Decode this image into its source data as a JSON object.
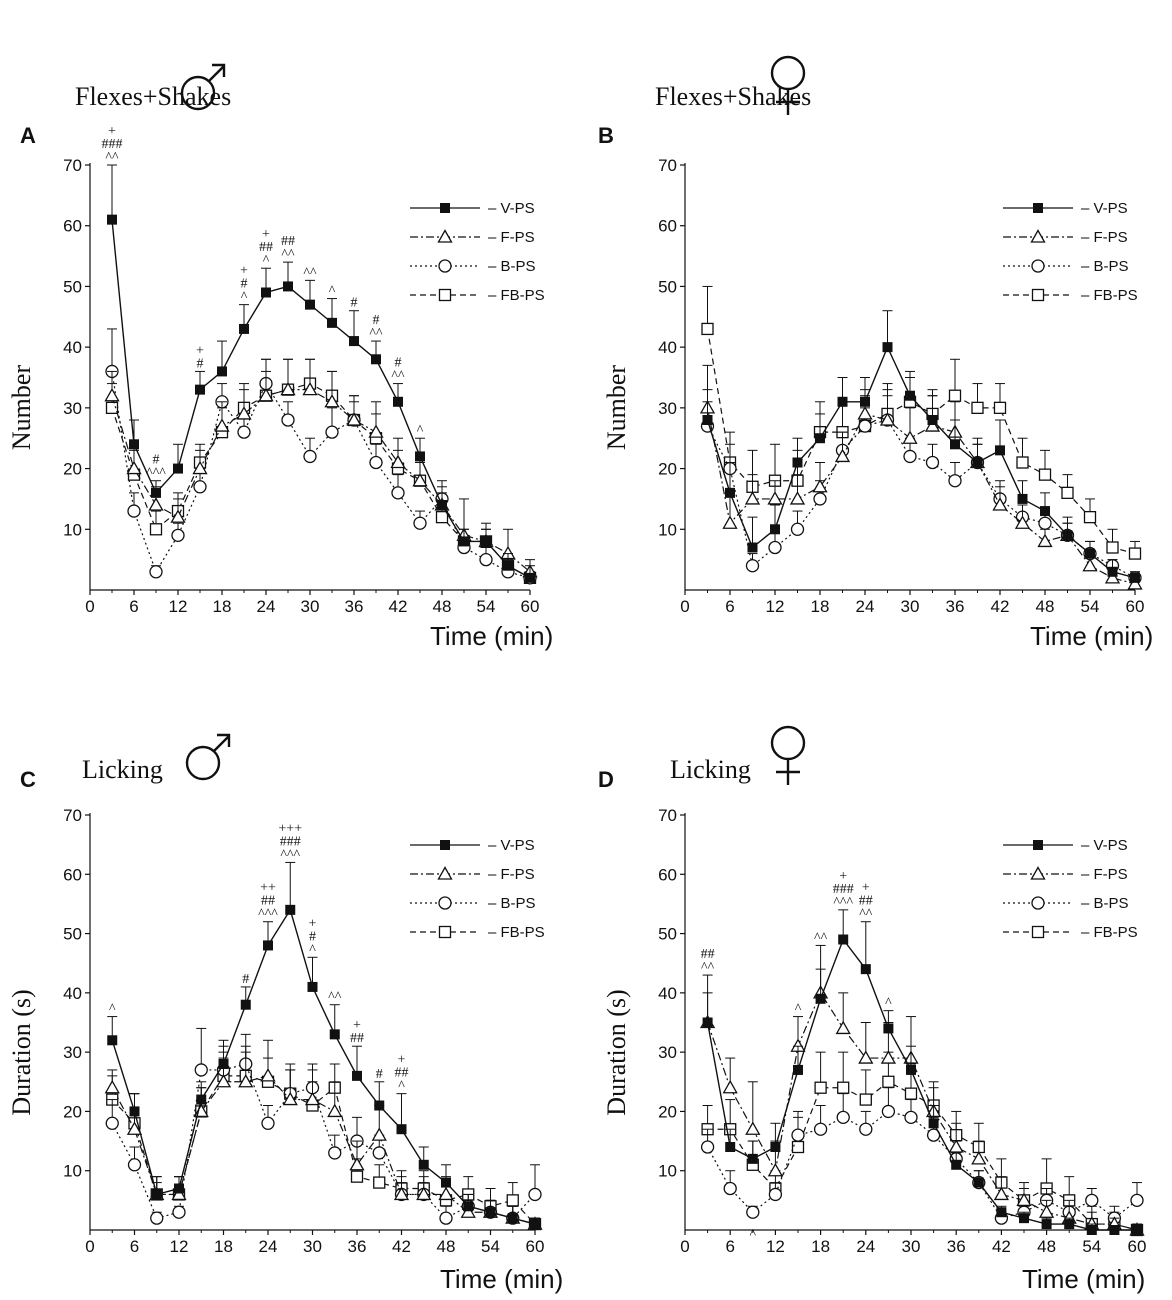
{
  "series_names": [
    "V-PS",
    "F-PS",
    "B-PS",
    "FB-PS"
  ],
  "chart_data": [
    {
      "panel": "A",
      "type": "line",
      "title": "Flexes+Shakes",
      "sex_symbol": "♂",
      "xlabel": "Time (min)",
      "ylabel": "Number",
      "xlim": [
        0,
        60
      ],
      "ylim": [
        0,
        70
      ],
      "x_ticks": [
        0,
        6,
        12,
        18,
        24,
        30,
        36,
        42,
        48,
        54,
        60
      ],
      "y_ticks": [
        10,
        20,
        30,
        40,
        50,
        60,
        70
      ],
      "legend_position": "top-right",
      "x": [
        3,
        6,
        9,
        12,
        15,
        18,
        21,
        24,
        27,
        30,
        33,
        36,
        39,
        42,
        45,
        48,
        51,
        54,
        57,
        60
      ],
      "series": [
        {
          "name": "V-PS",
          "values": [
            61,
            24,
            16,
            20,
            33,
            36,
            43,
            49,
            50,
            47,
            44,
            41,
            38,
            31,
            22,
            14,
            8,
            8,
            4,
            2
          ],
          "errors": [
            9,
            4,
            2,
            4,
            3,
            5,
            4,
            4,
            4,
            4,
            4,
            5,
            3,
            3,
            3,
            2,
            2,
            2,
            2,
            2
          ]
        },
        {
          "name": "F-PS",
          "values": [
            32,
            20,
            14,
            12,
            20,
            27,
            29,
            32,
            33,
            33,
            31,
            28,
            26,
            21,
            18,
            14,
            9,
            8,
            6,
            3
          ],
          "errors": [
            4,
            4,
            3,
            3,
            3,
            4,
            4,
            6,
            5,
            5,
            5,
            4,
            5,
            4,
            4,
            3,
            6,
            3,
            4,
            2
          ]
        },
        {
          "name": "B-PS",
          "values": [
            36,
            13,
            3,
            9,
            17,
            31,
            26,
            34,
            28,
            22,
            26,
            28,
            21,
            16,
            11,
            15,
            7,
            5,
            3,
            2
          ],
          "errors": [
            7,
            3,
            1,
            2,
            3,
            3,
            3,
            4,
            3,
            3,
            4,
            3,
            3,
            3,
            2,
            3,
            2,
            2,
            2,
            1
          ]
        },
        {
          "name": "FB-PS",
          "values": [
            30,
            19,
            10,
            13,
            21,
            26,
            30,
            32,
            33,
            34,
            32,
            28,
            25,
            20,
            18,
            12,
            8,
            8,
            4,
            2
          ],
          "errors": [
            4,
            4,
            3,
            3,
            3,
            4,
            4,
            4,
            5,
            4,
            4,
            4,
            4,
            3,
            3,
            2,
            2,
            2,
            2,
            1
          ]
        }
      ],
      "annotations": [
        {
          "x": 3,
          "lines": [
            "+",
            "###",
            "^^"
          ]
        },
        {
          "x": 9,
          "lines": [
            "#",
            "^^^"
          ]
        },
        {
          "x": 15,
          "lines": [
            "+",
            "#"
          ]
        },
        {
          "x": 21,
          "lines": [
            "+",
            "#",
            "^"
          ]
        },
        {
          "x": 24,
          "lines": [
            "+",
            "##",
            "^"
          ]
        },
        {
          "x": 27,
          "lines": [
            "##",
            "^^"
          ]
        },
        {
          "x": 30,
          "lines": [
            "^^"
          ]
        },
        {
          "x": 33,
          "lines": [
            "^"
          ]
        },
        {
          "x": 36,
          "lines": [
            "#"
          ]
        },
        {
          "x": 39,
          "lines": [
            "#",
            "^^"
          ]
        },
        {
          "x": 42,
          "lines": [
            "#",
            "^^"
          ]
        },
        {
          "x": 45,
          "lines": [
            "^"
          ]
        }
      ]
    },
    {
      "panel": "B",
      "type": "line",
      "title": "Flexes+Shakes",
      "sex_symbol": "♀",
      "xlabel": "Time (min)",
      "ylabel": "Number",
      "xlim": [
        0,
        60
      ],
      "ylim": [
        0,
        70
      ],
      "x_ticks": [
        0,
        6,
        12,
        18,
        24,
        30,
        36,
        42,
        48,
        54,
        60
      ],
      "y_ticks": [
        10,
        20,
        30,
        40,
        50,
        60,
        70
      ],
      "legend_position": "top-right",
      "x": [
        3,
        6,
        9,
        12,
        15,
        18,
        21,
        24,
        27,
        30,
        33,
        36,
        39,
        42,
        45,
        48,
        51,
        54,
        57,
        60
      ],
      "series": [
        {
          "name": "V-PS",
          "values": [
            28,
            16,
            7,
            10,
            21,
            25,
            31,
            31,
            40,
            32,
            28,
            24,
            21,
            23,
            15,
            13,
            9,
            6,
            3,
            2
          ],
          "errors": [
            5,
            5,
            5,
            4,
            4,
            4,
            4,
            4,
            6,
            4,
            4,
            4,
            3,
            5,
            3,
            3,
            3,
            2,
            2,
            1
          ]
        },
        {
          "name": "F-PS",
          "values": [
            30,
            11,
            15,
            15,
            15,
            17,
            22,
            29,
            28,
            25,
            27,
            26,
            21,
            14,
            11,
            8,
            9,
            4,
            2,
            1
          ],
          "errors": [
            7,
            5,
            4,
            3,
            4,
            4,
            4,
            4,
            5,
            5,
            5,
            5,
            4,
            3,
            3,
            2,
            2,
            2,
            1,
            1
          ]
        },
        {
          "name": "B-PS",
          "values": [
            27,
            20,
            4,
            7,
            10,
            15,
            23,
            27,
            28,
            22,
            21,
            18,
            21,
            15,
            12,
            11,
            9,
            6,
            4,
            2
          ],
          "errors": [
            4,
            4,
            2,
            3,
            3,
            3,
            3,
            3,
            4,
            3,
            3,
            3,
            3,
            3,
            2,
            2,
            2,
            2,
            1,
            1
          ]
        },
        {
          "name": "FB-PS",
          "values": [
            43,
            21,
            17,
            18,
            18,
            26,
            26,
            27,
            29,
            31,
            29,
            32,
            30,
            30,
            21,
            19,
            16,
            12,
            7,
            6
          ],
          "errors": [
            7,
            5,
            6,
            6,
            5,
            5,
            5,
            5,
            5,
            4,
            4,
            6,
            4,
            4,
            4,
            4,
            3,
            3,
            3,
            2
          ]
        }
      ],
      "annotations": []
    },
    {
      "panel": "C",
      "type": "line",
      "title": "Licking",
      "sex_symbol": "♂",
      "xlabel": "Time (min)",
      "ylabel": "Duration (s)",
      "xlim": [
        0,
        60
      ],
      "ylim": [
        0,
        70
      ],
      "x_ticks": [
        0,
        6,
        12,
        18,
        24,
        30,
        36,
        42,
        48,
        54,
        60
      ],
      "y_ticks": [
        10,
        20,
        30,
        40,
        50,
        60,
        70
      ],
      "legend_position": "top-right",
      "x": [
        3,
        6,
        9,
        12,
        15,
        18,
        21,
        24,
        27,
        30,
        33,
        36,
        39,
        42,
        45,
        48,
        51,
        54,
        57,
        60
      ],
      "series": [
        {
          "name": "V-PS",
          "values": [
            32,
            20,
            6,
            7,
            22,
            28,
            38,
            48,
            54,
            41,
            33,
            26,
            21,
            17,
            11,
            8,
            4,
            3,
            2,
            1
          ],
          "errors": [
            4,
            3,
            2,
            2,
            3,
            4,
            3,
            4,
            8,
            5,
            5,
            5,
            4,
            6,
            3,
            3,
            2,
            2,
            2,
            1
          ]
        },
        {
          "name": "F-PS",
          "values": [
            24,
            17,
            6,
            6,
            20,
            25,
            25,
            26,
            22,
            22,
            20,
            11,
            16,
            6,
            6,
            6,
            3,
            3,
            2,
            1
          ],
          "errors": [
            3,
            6,
            3,
            3,
            4,
            4,
            6,
            6,
            5,
            5,
            5,
            4,
            5,
            3,
            3,
            3,
            2,
            2,
            2,
            1
          ]
        },
        {
          "name": "B-PS",
          "values": [
            18,
            11,
            2,
            3,
            27,
            27,
            28,
            18,
            23,
            24,
            13,
            15,
            13,
            6,
            6,
            2,
            4,
            3,
            2,
            6
          ],
          "errors": [
            4,
            3,
            1,
            1,
            7,
            4,
            5,
            3,
            5,
            4,
            3,
            4,
            3,
            2,
            2,
            2,
            2,
            2,
            2,
            5
          ]
        },
        {
          "name": "FB-PS",
          "values": [
            22,
            18,
            6,
            6,
            20,
            26,
            26,
            25,
            23,
            21,
            24,
            9,
            8,
            7,
            7,
            5,
            6,
            4,
            5,
            1
          ],
          "errors": [
            4,
            5,
            3,
            3,
            4,
            4,
            4,
            4,
            4,
            4,
            4,
            3,
            3,
            3,
            3,
            3,
            3,
            3,
            3,
            1
          ]
        }
      ],
      "annotations": [
        {
          "x": 3,
          "lines": [
            "^"
          ]
        },
        {
          "x": 21,
          "lines": [
            "#"
          ]
        },
        {
          "x": 24,
          "lines": [
            "++",
            "##",
            "^^^"
          ]
        },
        {
          "x": 27,
          "lines": [
            "+++",
            "###",
            "^^^"
          ]
        },
        {
          "x": 30,
          "lines": [
            "+",
            "#",
            "^"
          ]
        },
        {
          "x": 33,
          "lines": [
            "^^"
          ]
        },
        {
          "x": 36,
          "lines": [
            "+",
            "##"
          ]
        },
        {
          "x": 39,
          "lines": [
            "#"
          ]
        },
        {
          "x": 42,
          "lines": [
            "+",
            "##",
            "^"
          ]
        }
      ]
    },
    {
      "panel": "D",
      "type": "line",
      "title": "Licking",
      "sex_symbol": "♀",
      "xlabel": "Time (min)",
      "ylabel": "Duration (s)",
      "xlim": [
        0,
        60
      ],
      "ylim": [
        0,
        70
      ],
      "x_ticks": [
        0,
        6,
        12,
        18,
        24,
        30,
        36,
        42,
        48,
        54,
        60
      ],
      "y_ticks": [
        10,
        20,
        30,
        40,
        50,
        60,
        70
      ],
      "legend_position": "top-right",
      "x": [
        3,
        6,
        9,
        12,
        15,
        18,
        21,
        24,
        27,
        30,
        33,
        36,
        39,
        42,
        45,
        48,
        51,
        54,
        57,
        60
      ],
      "series": [
        {
          "name": "V-PS",
          "values": [
            35,
            14,
            12,
            14,
            27,
            39,
            49,
            44,
            34,
            27,
            18,
            11,
            8,
            3,
            2,
            1,
            1,
            0,
            0,
            0
          ],
          "errors": [
            8,
            3,
            3,
            4,
            4,
            5,
            5,
            8,
            3,
            4,
            3,
            2,
            2,
            1,
            1,
            1,
            1,
            1,
            0,
            0
          ]
        },
        {
          "name": "F-PS",
          "values": [
            35,
            24,
            17,
            10,
            31,
            40,
            34,
            29,
            29,
            29,
            20,
            14,
            12,
            6,
            5,
            3,
            2,
            1,
            1,
            0
          ],
          "errors": [
            5,
            5,
            8,
            5,
            5,
            8,
            6,
            6,
            6,
            7,
            4,
            4,
            3,
            3,
            2,
            2,
            2,
            2,
            1,
            1
          ]
        },
        {
          "name": "B-PS",
          "values": [
            14,
            7,
            3,
            6,
            16,
            17,
            19,
            17,
            20,
            19,
            16,
            12,
            8,
            2,
            3,
            5,
            3,
            5,
            2,
            5
          ],
          "errors": [
            3,
            3,
            1,
            2,
            4,
            4,
            4,
            3,
            4,
            3,
            3,
            3,
            2,
            1,
            1,
            2,
            2,
            2,
            2,
            3
          ]
        },
        {
          "name": "FB-PS",
          "values": [
            17,
            17,
            11,
            7,
            14,
            24,
            24,
            22,
            25,
            23,
            21,
            16,
            14,
            8,
            5,
            7,
            5,
            1,
            1,
            0
          ],
          "errors": [
            4,
            5,
            4,
            3,
            5,
            6,
            6,
            5,
            5,
            5,
            4,
            4,
            4,
            4,
            3,
            5,
            4,
            3,
            2,
            1
          ]
        }
      ],
      "annotations": [
        {
          "x": 3,
          "lines": [
            "##",
            "^^"
          ]
        },
        {
          "x": 9,
          "lines": [
            "^"
          ],
          "below": true
        },
        {
          "x": 15,
          "lines": [
            "^"
          ]
        },
        {
          "x": 18,
          "lines": [
            "^^"
          ]
        },
        {
          "x": 21,
          "lines": [
            "+",
            "###",
            "^^^"
          ]
        },
        {
          "x": 24,
          "lines": [
            "+",
            "##",
            "^^"
          ]
        },
        {
          "x": 27,
          "lines": [
            "^"
          ]
        }
      ]
    }
  ]
}
